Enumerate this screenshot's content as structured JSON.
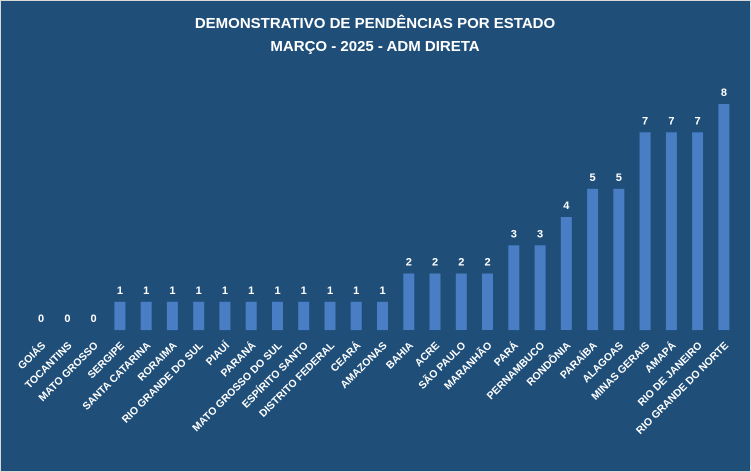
{
  "chart_data": {
    "type": "bar",
    "title": "DEMONSTRATIVO DE PENDÊNCIAS POR ESTADO",
    "subtitle": "MARÇO - 2025 - ADM DIRETA",
    "xlabel": "",
    "ylabel": "",
    "categories": [
      "GOIÁS",
      "TOCANTINS",
      "MATO GROSSO",
      "SERGIPE",
      "SANTA CATARINA",
      "RORAIMA",
      "RIO GRANDE DO SUL",
      "PIAUÍ",
      "PARANÁ",
      "MATO GROSSO DO SUL",
      "ESPÍRITO SANTO",
      "DISTRITO FEDERAL",
      "CEARÁ",
      "AMAZONAS",
      "BAHIA",
      "ACRE",
      "SÃO PAULO",
      "MARANHÃO",
      "PARÁ",
      "PERNAMBUCO",
      "RONDÔNIA",
      "PARAÍBA",
      "ALAGOAS",
      "MINAS GERAIS",
      "AMAPÁ",
      "RIO DE JANEIRO",
      "RIO GRANDE DO NORTE"
    ],
    "values": [
      0,
      0,
      0,
      1,
      1,
      1,
      1,
      1,
      1,
      1,
      1,
      1,
      1,
      1,
      2,
      2,
      2,
      2,
      3,
      3,
      4,
      5,
      5,
      7,
      7,
      7,
      8
    ],
    "ylim": [
      0,
      8
    ],
    "grid": false,
    "legend": "none",
    "data_labels": true,
    "colors": {
      "background": "#1f4e79",
      "bar": "#4a7ec4",
      "text": "#ffffff"
    }
  }
}
